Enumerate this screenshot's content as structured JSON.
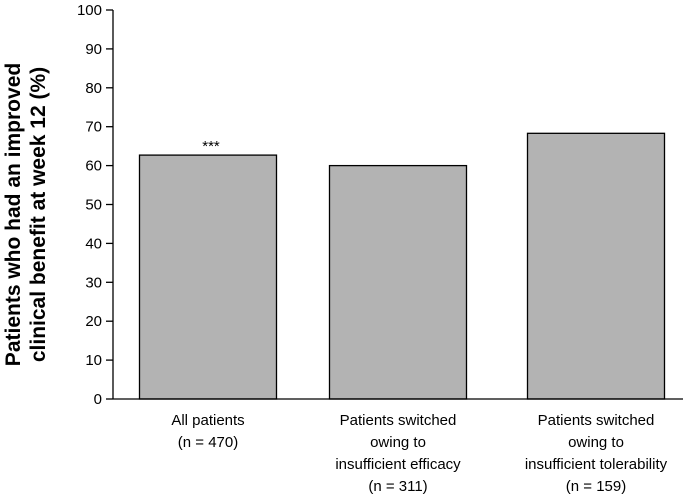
{
  "chart_data": {
    "type": "bar",
    "title": "",
    "xlabel": "",
    "ylabel_lines": [
      "Patients who had an improved",
      "clinical benefit at week 12 (%)"
    ],
    "ylim": [
      0,
      100
    ],
    "yticks": [
      0,
      10,
      20,
      30,
      40,
      50,
      60,
      70,
      80,
      90,
      100
    ],
    "categories": [
      {
        "label_lines": [
          "All patients",
          "(n = 470)"
        ],
        "value": 62.7,
        "annotation": "***"
      },
      {
        "label_lines": [
          "Patients switched",
          "owing to",
          "insufficient efficacy",
          "(n = 311)"
        ],
        "value": 60.0,
        "annotation": ""
      },
      {
        "label_lines": [
          "Patients switched",
          "owing to",
          "insufficient tolerability",
          "(n = 159)"
        ],
        "value": 68.3,
        "annotation": ""
      }
    ],
    "grid": false,
    "legend": "none",
    "colors": {
      "bar_fill": "#b3b3b3",
      "bar_stroke": "#000000",
      "axis": "#000000",
      "text": "#000000"
    }
  }
}
